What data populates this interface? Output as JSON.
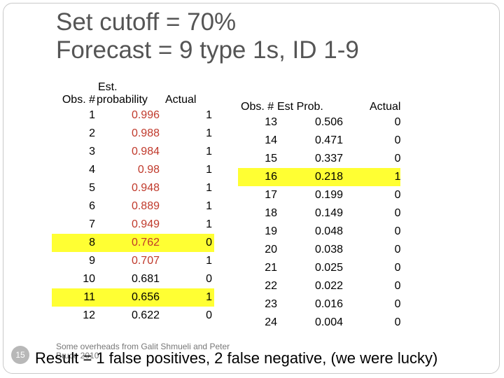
{
  "title": {
    "line1": "Set cutoff = 70%",
    "line2": "Forecast = 9 type 1s, ID 1-9"
  },
  "left_table": {
    "header_line1": "Est.",
    "header_obs": "Obs. #",
    "header_prob": "probability",
    "header_actual": "Actual",
    "rows": [
      {
        "obs": "1",
        "prob": "0.996",
        "actual": "1"
      },
      {
        "obs": "2",
        "prob": "0.988",
        "actual": "1"
      },
      {
        "obs": "3",
        "prob": "0.984",
        "actual": "1"
      },
      {
        "obs": "4",
        "prob": "0.98",
        "actual": "1"
      },
      {
        "obs": "5",
        "prob": "0.948",
        "actual": "1"
      },
      {
        "obs": "6",
        "prob": "0.889",
        "actual": "1"
      },
      {
        "obs": "7",
        "prob": "0.949",
        "actual": "1"
      },
      {
        "obs": "8",
        "prob": "0.762",
        "actual": "0"
      },
      {
        "obs": "9",
        "prob": "0.707",
        "actual": "1"
      },
      {
        "obs": "10",
        "prob": "0.681",
        "actual": "0"
      },
      {
        "obs": "11",
        "prob": "0.656",
        "actual": "1"
      },
      {
        "obs": "12",
        "prob": "0.622",
        "actual": "0"
      }
    ]
  },
  "right_table": {
    "header_obs": "Obs. #",
    "header_prob": "Est Prob.",
    "header_actual": "Actual",
    "rows": [
      {
        "obs": "13",
        "prob": "0.506",
        "actual": "0"
      },
      {
        "obs": "14",
        "prob": "0.471",
        "actual": "0"
      },
      {
        "obs": "15",
        "prob": "0.337",
        "actual": "0"
      },
      {
        "obs": "16",
        "prob": "0.218",
        "actual": "1"
      },
      {
        "obs": "17",
        "prob": "0.199",
        "actual": "0"
      },
      {
        "obs": "18",
        "prob": "0.149",
        "actual": "0"
      },
      {
        "obs": "19",
        "prob": "0.048",
        "actual": "0"
      },
      {
        "obs": "20",
        "prob": "0.038",
        "actual": "0"
      },
      {
        "obs": "21",
        "prob": "0.025",
        "actual": "0"
      },
      {
        "obs": "22",
        "prob": "0.022",
        "actual": "0"
      },
      {
        "obs": "23",
        "prob": "0.016",
        "actual": "0"
      },
      {
        "obs": "24",
        "prob": "0.004",
        "actual": "0"
      }
    ]
  },
  "highlighted_rows": {
    "left": [
      7,
      10
    ],
    "right": [
      3
    ]
  },
  "red_prob_rows_left": [
    0,
    1,
    2,
    3,
    4,
    5,
    6,
    7,
    8
  ],
  "colors": {
    "highlight": "#ffff33",
    "prob_red": "#c0392b",
    "title": "#555555"
  },
  "footer": {
    "slide_number": "15",
    "credit_line1": "Some overheads from Galit Shmueli and Peter",
    "credit_line2": "Bruce 2010",
    "result": "Result = 1 false positives, 2 false negative, (we were lucky)"
  }
}
